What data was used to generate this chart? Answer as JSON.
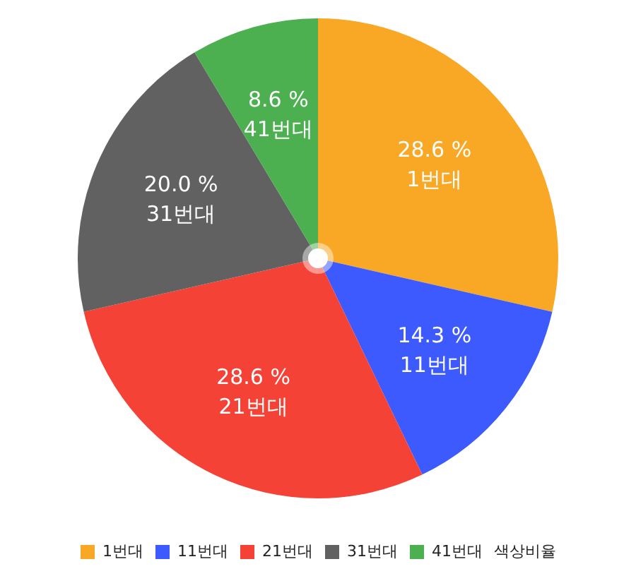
{
  "chart_data": {
    "type": "pie",
    "categories": [
      "1번대",
      "11번대",
      "21번대",
      "31번대",
      "41번대"
    ],
    "values": [
      28.6,
      14.3,
      28.6,
      20.0,
      8.6
    ],
    "colors": [
      "#f9a825",
      "#3d5afe",
      "#f44336",
      "#616161",
      "#4caf50"
    ],
    "value_labels": [
      "28.6 %",
      "14.3 %",
      "28.6 %",
      "20.0 %",
      "8.6 %"
    ],
    "legend": "bottom",
    "legend_title": "색상비율"
  }
}
